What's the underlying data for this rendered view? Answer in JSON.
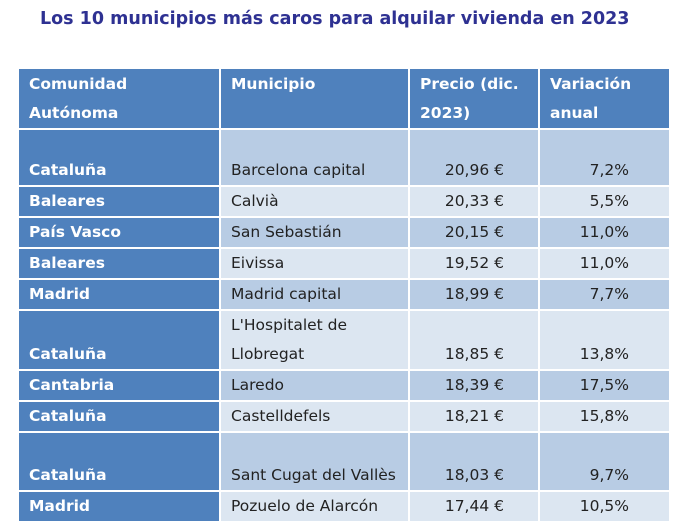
{
  "title": "Los 10 municipios más caros para alquilar vivienda en 2023",
  "headers": {
    "comunidad": "Comunidad Autónoma",
    "municipio": "Municipio",
    "precio": "Precio (dic. 2023)",
    "variacion": "Variación anual"
  },
  "rows": [
    {
      "comunidad": "Cataluña",
      "municipio": "Barcelona capital",
      "precio": "20,96 €",
      "variacion": "7,2%"
    },
    {
      "comunidad": "Baleares",
      "municipio": "Calvià",
      "precio": "20,33 €",
      "variacion": "5,5%"
    },
    {
      "comunidad": "País Vasco",
      "municipio": "San Sebastián",
      "precio": "20,15 €",
      "variacion": "11,0%"
    },
    {
      "comunidad": "Baleares",
      "municipio": "Eivissa",
      "precio": "19,52 €",
      "variacion": "11,0%"
    },
    {
      "comunidad": "Madrid",
      "municipio": "Madrid capital",
      "precio": "18,99 €",
      "variacion": "7,7%"
    },
    {
      "comunidad": "Cataluña",
      "municipio": "L'Hospitalet de Llobregat",
      "precio": "18,85 €",
      "variacion": "13,8%"
    },
    {
      "comunidad": "Cantabria",
      "municipio": "Laredo",
      "precio": "18,39 €",
      "variacion": "17,5%"
    },
    {
      "comunidad": "Cataluña",
      "municipio": "Castelldefels",
      "precio": "18,21 €",
      "variacion": "15,8%"
    },
    {
      "comunidad": "Cataluña",
      "municipio": "Sant Cugat del Vallès",
      "precio": "18,03 €",
      "variacion": "9,7%"
    },
    {
      "comunidad": "Madrid",
      "municipio": "Pozuelo de Alarcón",
      "precio": "17,44 €",
      "variacion": "10,5%"
    }
  ],
  "colors": {
    "title": "#2e3192",
    "header_bg": "#4f81bd",
    "row_dark": "#b8cce4",
    "row_light": "#dce6f1"
  }
}
